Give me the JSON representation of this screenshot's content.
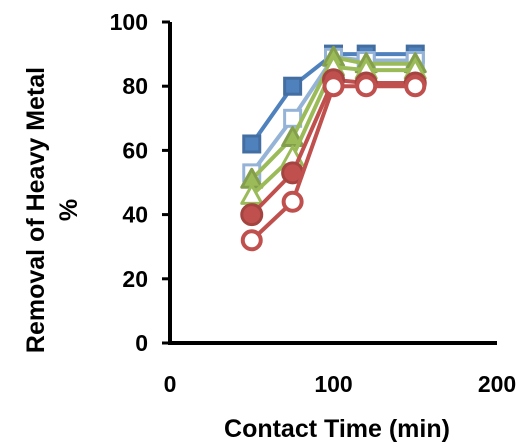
{
  "chart_data": {
    "type": "line",
    "xlabel": "Contact Time (min)",
    "ylabel_lines": [
      "Removal of Heavy Metal",
      "%"
    ],
    "xlim": [
      0,
      200
    ],
    "ylim": [
      0,
      100
    ],
    "x_ticks": [
      "0",
      "100",
      "200"
    ],
    "y_ticks": [
      "0",
      "20",
      "40",
      "60",
      "80",
      "100"
    ],
    "grid": false,
    "legend": "none",
    "series": [
      {
        "marker": "square-filled",
        "color": "#4f81bd",
        "points": [
          [
            50,
            62
          ],
          [
            75,
            80
          ],
          [
            100,
            90
          ],
          [
            120,
            90
          ],
          [
            150,
            90
          ]
        ]
      },
      {
        "marker": "square-open",
        "color": "#95b3d7",
        "points": [
          [
            50,
            53
          ],
          [
            75,
            70
          ],
          [
            100,
            89
          ],
          [
            120,
            88
          ],
          [
            150,
            88
          ]
        ]
      },
      {
        "marker": "triangle-filled",
        "color": "#9bbb59",
        "points": [
          [
            50,
            51
          ],
          [
            75,
            64
          ],
          [
            100,
            89
          ],
          [
            120,
            87
          ],
          [
            150,
            87
          ]
        ]
      },
      {
        "marker": "triangle-open",
        "color": "#9bbb59",
        "points": [
          [
            50,
            46
          ],
          [
            75,
            58
          ],
          [
            100,
            86
          ],
          [
            120,
            85
          ],
          [
            150,
            85
          ]
        ]
      },
      {
        "marker": "circle-filled",
        "color": "#c0504d",
        "points": [
          [
            50,
            40
          ],
          [
            75,
            53
          ],
          [
            100,
            82
          ],
          [
            120,
            81
          ],
          [
            150,
            81
          ]
        ]
      },
      {
        "marker": "circle-open",
        "color": "#c0504d",
        "points": [
          [
            50,
            32
          ],
          [
            75,
            44
          ],
          [
            100,
            80
          ],
          [
            120,
            80
          ],
          [
            150,
            80
          ]
        ]
      }
    ]
  }
}
